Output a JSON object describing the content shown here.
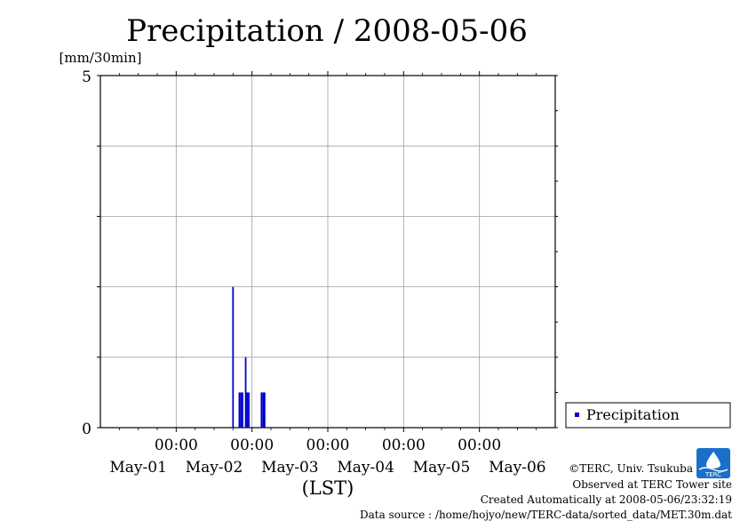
{
  "chart_data": {
    "type": "bar",
    "title": "Precipitation / 2008-05-06",
    "ylabel": "[mm/30min]",
    "xlabel": "(LST)",
    "ylim": [
      0,
      5
    ],
    "y_ticks_labeled": [
      "0",
      "5"
    ],
    "y_grid_step": 1,
    "x_range_days": [
      0,
      6
    ],
    "x_tick_time_label": "00:00",
    "x_tick_dates": [
      "May-01",
      "May-02",
      "May-03",
      "May-04",
      "May-05",
      "May-06"
    ],
    "grid": true,
    "legend_position": "right",
    "series": [
      {
        "name": "Precipitation",
        "color": "#0000cc",
        "points": [
          {
            "x": "2008-05-02 18:00",
            "y": 2.0
          },
          {
            "x": "2008-05-02 20:00",
            "y": 0.5
          },
          {
            "x": "2008-05-02 20:30",
            "y": 0.5
          },
          {
            "x": "2008-05-02 21:00",
            "y": 0.5
          },
          {
            "x": "2008-05-02 22:00",
            "y": 1.0
          },
          {
            "x": "2008-05-02 22:30",
            "y": 0.5
          },
          {
            "x": "2008-05-02 23:00",
            "y": 0.5
          },
          {
            "x": "2008-05-03 03:00",
            "y": 0.5
          },
          {
            "x": "2008-05-03 03:30",
            "y": 0.5
          },
          {
            "x": "2008-05-03 04:00",
            "y": 0.5
          }
        ]
      }
    ]
  },
  "footer": {
    "copyright": "©TERC, Univ. Tsukuba",
    "site": "Observed at TERC Tower site",
    "created": "Created Automatically at 2008-05-06/23:32:19",
    "source": "Data source : /home/hojyo/new/TERC-data/sorted_data/MET.30m.dat"
  },
  "logo": {
    "text": "TERC",
    "color": "#1a6fc9"
  }
}
